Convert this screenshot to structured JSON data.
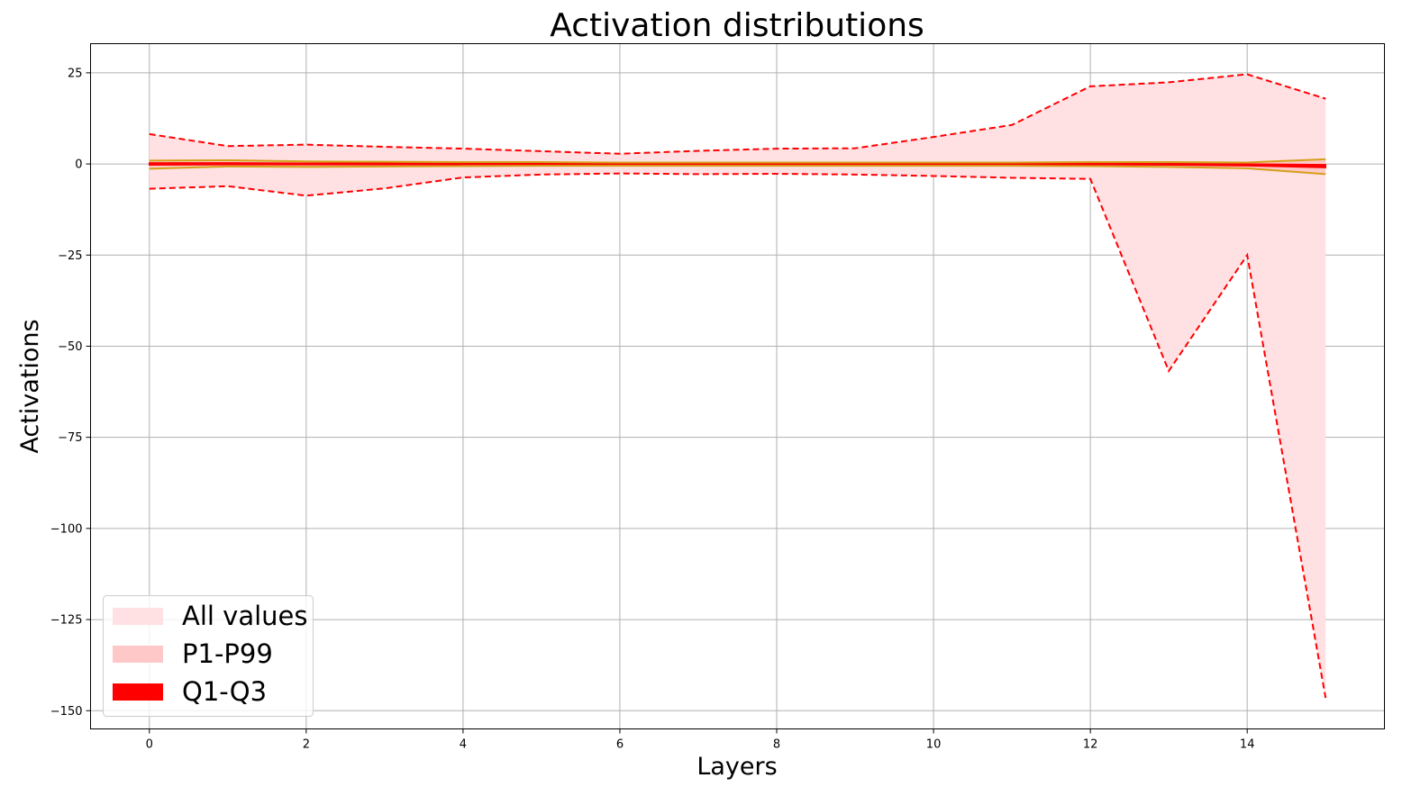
{
  "chart_data": {
    "type": "line",
    "title": "Activation distributions",
    "xlabel": "Layers",
    "ylabel": "Activations",
    "xlim": [
      -0.75,
      15.75
    ],
    "ylim": [
      -155,
      33
    ],
    "xticks": [
      0,
      2,
      4,
      6,
      8,
      10,
      12,
      14
    ],
    "xtick_labels": [
      "0",
      "2",
      "4",
      "6",
      "8",
      "10",
      "12",
      "14"
    ],
    "yticks": [
      25,
      0,
      -25,
      -50,
      -75,
      -100,
      -125,
      -150
    ],
    "ytick_labels": [
      "25",
      "0",
      "−25",
      "−50",
      "−75",
      "−100",
      "−125",
      "−150"
    ],
    "grid": true,
    "legend_position": "lower-left",
    "x": [
      0,
      1,
      2,
      3,
      4,
      5,
      6,
      7,
      8,
      9,
      10,
      11,
      12,
      13,
      14,
      15
    ],
    "series": [
      {
        "name": "All values",
        "kind": "band",
        "color": "#ffe0e3",
        "upper": [
          8.2,
          4.9,
          5.3,
          4.7,
          4.2,
          3.5,
          2.8,
          3.6,
          4.2,
          4.3,
          7.4,
          10.7,
          21.3,
          22.4,
          24.6,
          17.9
        ],
        "lower": [
          -6.8,
          -6.1,
          -8.7,
          -6.7,
          -3.7,
          -2.9,
          -2.6,
          -2.8,
          -2.7,
          -2.9,
          -3.3,
          -3.8,
          -4.1,
          -56.8,
          -25.0,
          -146.5
        ]
      },
      {
        "name": "P1-P99",
        "kind": "band",
        "color": "#ffc8c8",
        "upper": [
          0.9,
          1.0,
          0.7,
          0.6,
          0.5,
          0.5,
          0.4,
          0.4,
          0.4,
          0.4,
          0.4,
          0.4,
          0.5,
          0.5,
          0.4,
          1.3
        ],
        "lower": [
          -1.3,
          -0.7,
          -0.8,
          -0.7,
          -0.6,
          -0.5,
          -0.5,
          -0.5,
          -0.5,
          -0.5,
          -0.5,
          -0.5,
          -0.6,
          -0.8,
          -1.2,
          -2.8
        ]
      },
      {
        "name": "Q1-Q3",
        "kind": "band",
        "color": "#ff0000",
        "upper": [
          0.3,
          0.3,
          0.2,
          0.2,
          0.15,
          0.15,
          0.1,
          0.1,
          0.1,
          0.1,
          0.1,
          0.1,
          0.1,
          0.1,
          0.0,
          -0.2
        ],
        "lower": [
          -0.3,
          -0.2,
          -0.2,
          -0.2,
          -0.15,
          -0.15,
          -0.1,
          -0.1,
          -0.1,
          -0.1,
          -0.1,
          -0.1,
          -0.2,
          -0.3,
          -0.5,
          -1.0
        ]
      }
    ],
    "colors": {
      "extreme_line": "#ff0000",
      "percentile_line": "#d4a017",
      "grid": "#b0b0b0",
      "axis": "#000000"
    }
  }
}
